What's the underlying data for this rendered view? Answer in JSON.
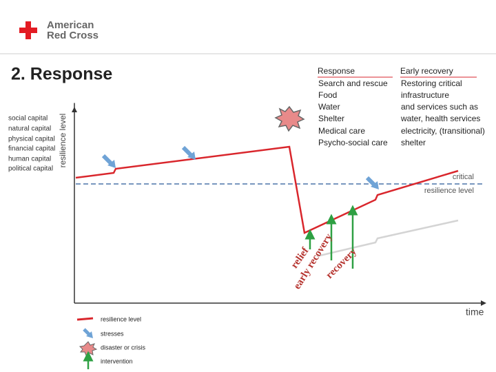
{
  "logo": {
    "line1": "American",
    "line2": "Red Cross"
  },
  "title": "2. Response",
  "capitals": [
    "social capital",
    "natural capital",
    "physical capital",
    "financial capital",
    "human capital",
    "political capital"
  ],
  "axes": {
    "y": "resilience level",
    "x": "time"
  },
  "response": {
    "heading": "Response",
    "items": [
      "Search and rescue",
      "Food",
      "Water",
      "Shelter",
      "Medical care",
      "Psycho-social care"
    ]
  },
  "early_recovery": {
    "heading": "Early recovery",
    "lines": [
      "Restoring critical",
      "infrastructure",
      "and services such as",
      "water, health services",
      "electricity, (transitional)",
      "shelter"
    ]
  },
  "critical": [
    "critical",
    "resilience level"
  ],
  "arrows": [
    "relief",
    "early recovery",
    "recovery"
  ],
  "legend": [
    "resilience level",
    "stresses",
    "disaster or crisis",
    "intervention"
  ]
}
